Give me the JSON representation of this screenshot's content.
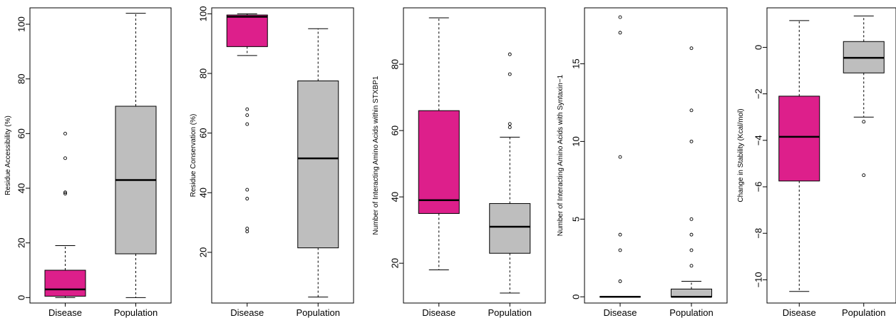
{
  "colors": {
    "disease": "#dd1f8b",
    "population": "#bebebe"
  },
  "chart_data": [
    {
      "type": "box",
      "categories": [
        "Disease",
        "Population"
      ],
      "ylabel": "Residue Accessibility (%)",
      "ylim": [
        -2,
        106
      ],
      "yticks": [
        0,
        20,
        40,
        60,
        80,
        100
      ],
      "yticklabels": [
        "0",
        "20",
        "40",
        "60",
        "80",
        "100"
      ],
      "series": [
        {
          "whisker_low": 0,
          "q1": 0.5,
          "median": 3,
          "q3": 10,
          "whisker_high": 19,
          "outliers": [
            38,
            38.5,
            51,
            60
          ]
        },
        {
          "whisker_low": 0,
          "q1": 16,
          "median": 43,
          "q3": 70,
          "whisker_high": 104,
          "outliers": []
        }
      ]
    },
    {
      "type": "box",
      "categories": [
        "Disease",
        "Population"
      ],
      "ylabel": "Residue Conservation (%)",
      "ylim": [
        3,
        102
      ],
      "yticks": [
        20,
        40,
        60,
        80,
        100
      ],
      "yticklabels": [
        "20",
        "40",
        "60",
        "80",
        "100"
      ],
      "series": [
        {
          "whisker_low": 86,
          "q1": 89,
          "median": 99,
          "q3": 99.6,
          "whisker_high": 100,
          "outliers": [
            27,
            28,
            38,
            41,
            63,
            66,
            68
          ]
        },
        {
          "whisker_low": 5,
          "q1": 21.5,
          "median": 51.5,
          "q3": 77.5,
          "whisker_high": 95,
          "outliers": []
        }
      ]
    },
    {
      "type": "box",
      "categories": [
        "Disease",
        "Population"
      ],
      "ylabel": "Number of Interacting Amino Acids within STXBP1",
      "ylim": [
        8,
        97
      ],
      "yticks": [
        20,
        40,
        60,
        80
      ],
      "yticklabels": [
        "20",
        "40",
        "60",
        "80"
      ],
      "series": [
        {
          "whisker_low": 18,
          "q1": 35,
          "median": 39,
          "q3": 66,
          "whisker_high": 94,
          "outliers": []
        },
        {
          "whisker_low": 11,
          "q1": 23,
          "median": 31,
          "q3": 38,
          "whisker_high": 58,
          "outliers": [
            61,
            62,
            77,
            83
          ]
        }
      ]
    },
    {
      "type": "box",
      "categories": [
        "Disease",
        "Population"
      ],
      "ylabel": "Number of Interacting Amino Acids with Syntaxin−1",
      "ylim": [
        -0.4,
        18.6
      ],
      "yticks": [
        0,
        5,
        10,
        15
      ],
      "yticklabels": [
        "0",
        "5",
        "10",
        "15"
      ],
      "series": [
        {
          "whisker_low": 0,
          "q1": 0,
          "median": 0,
          "q3": 0,
          "whisker_high": 0,
          "outliers": [
            1,
            3,
            4,
            9,
            17,
            18
          ]
        },
        {
          "whisker_low": 0,
          "q1": 0,
          "median": 0,
          "q3": 0.5,
          "whisker_high": 1,
          "outliers": [
            2,
            3,
            4,
            5,
            10,
            12,
            16
          ]
        }
      ]
    },
    {
      "type": "box",
      "categories": [
        "Disease",
        "Population"
      ],
      "ylabel": "Change in Stability (Kcal/mol)",
      "ylim": [
        -11,
        1.7
      ],
      "yticks": [
        -10,
        -8,
        -6,
        -4,
        -2,
        0
      ],
      "yticklabels": [
        "−10",
        "−8",
        "−6",
        "−4",
        "−2",
        "0"
      ],
      "series": [
        {
          "whisker_low": -10.5,
          "q1": -5.75,
          "median": -3.85,
          "q3": -2.1,
          "whisker_high": 1.15,
          "outliers": []
        },
        {
          "whisker_low": -3,
          "q1": -1.1,
          "median": -0.45,
          "q3": 0.25,
          "whisker_high": 1.35,
          "outliers": [
            -3.2,
            -5.5
          ]
        }
      ]
    }
  ]
}
